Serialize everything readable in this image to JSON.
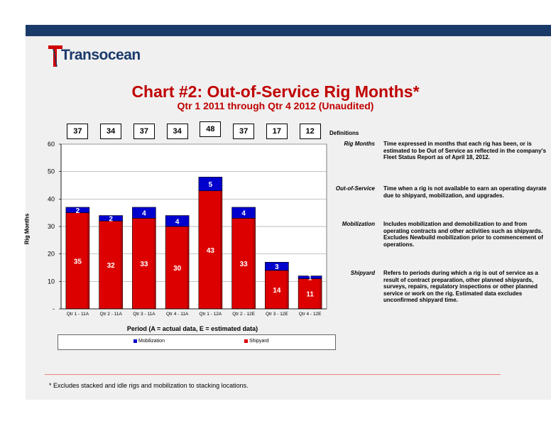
{
  "brand": {
    "logo_text": "Transocean"
  },
  "title": "Chart #2: Out-of-Service Rig Months*",
  "subtitle": "Qtr 1 2011 through Qtr 4 2012 (Unaudited)",
  "definitions": {
    "heading": "Definitions",
    "items": [
      {
        "term": "Rig Months",
        "desc": "Time expressed in months that each rig has been, or is estimated to be Out of Service as reflected in the company's Fleet Status Report as of April 18, 2012."
      },
      {
        "term": "Out-of-Service",
        "desc": "Time when a rig is not available to earn an operating dayrate due to shipyard, mobilization, and upgrades."
      },
      {
        "term": "Mobilization",
        "desc": "Includes mobilization and demobilization to and from operating contracts and other activities such as shipyards. Excludes Newbuild mobilization prior to commencement of operations."
      },
      {
        "term": "Shipyard",
        "desc": "Refers to periods during which a rig is out of service as a result of contract preparation, other planned shipyards, surveys, repairs, regulatory inspections or other planned service or work on the rig. Estimated data excludes unconfirmed shipyard time."
      }
    ]
  },
  "footnote": "* Excludes stacked and idle rigs and mobilization to stacking locations.",
  "colors": {
    "shipyard": "#dd0000",
    "mobilization": "#0000cc",
    "title": "#c00000"
  },
  "chart_data": {
    "type": "bar",
    "stacked": true,
    "categories": [
      "Qtr 1 - 11A",
      "Qtr 2 - 11A",
      "Qtr 3 - 11A",
      "Qtr 4 - 11A",
      "Qtr 1 - 12A",
      "Qtr 2 - 12E",
      "Qtr 3 - 12E",
      "Qtr 4 - 12E"
    ],
    "series": [
      {
        "name": "Shipyard",
        "values": [
          35,
          32,
          33,
          30,
          43,
          33,
          14,
          11
        ]
      },
      {
        "name": "Mobilization",
        "values": [
          2,
          2,
          4,
          4,
          5,
          4,
          3,
          1
        ]
      }
    ],
    "totals": [
      37,
      34,
      37,
      34,
      48,
      37,
      17,
      12
    ],
    "xlabel": "Period (A = actual data, E = estimated data)",
    "ylabel": "Rig Months",
    "ylim": [
      0,
      60
    ],
    "yticks": [
      "-",
      "10",
      "20",
      "30",
      "40",
      "50",
      "60"
    ],
    "legend": [
      "Mobilization",
      "Shipyard"
    ],
    "legend_position": "bottom",
    "grid": true
  }
}
